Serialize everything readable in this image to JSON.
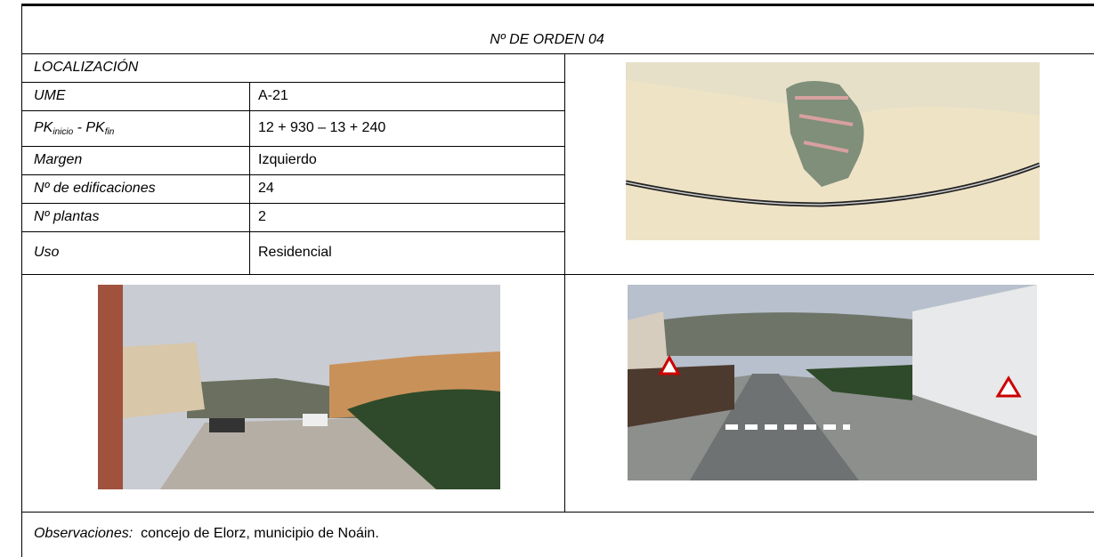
{
  "header": {
    "title": "Nº DE ORDEN 04"
  },
  "table": {
    "section": "LOCALIZACIÓN",
    "rows": [
      {
        "label": "UME",
        "value": "A-21"
      },
      {
        "label": {
          "a": "PK",
          "a_sub": "inicio",
          "sep": " - ",
          "b": "PK",
          "b_sub": "fin"
        },
        "value": "12 + 930 – 13 + 240"
      },
      {
        "label": "Margen",
        "value": "Izquierdo"
      },
      {
        "label": "Nº de edificaciones",
        "value": "24"
      },
      {
        "label": "Nº plantas",
        "value": "2"
      },
      {
        "label": "Uso",
        "value": "Residencial"
      }
    ]
  },
  "footer": {
    "label": "Observaciones:",
    "text": "concejo de Elorz, municipio de Noáin."
  }
}
